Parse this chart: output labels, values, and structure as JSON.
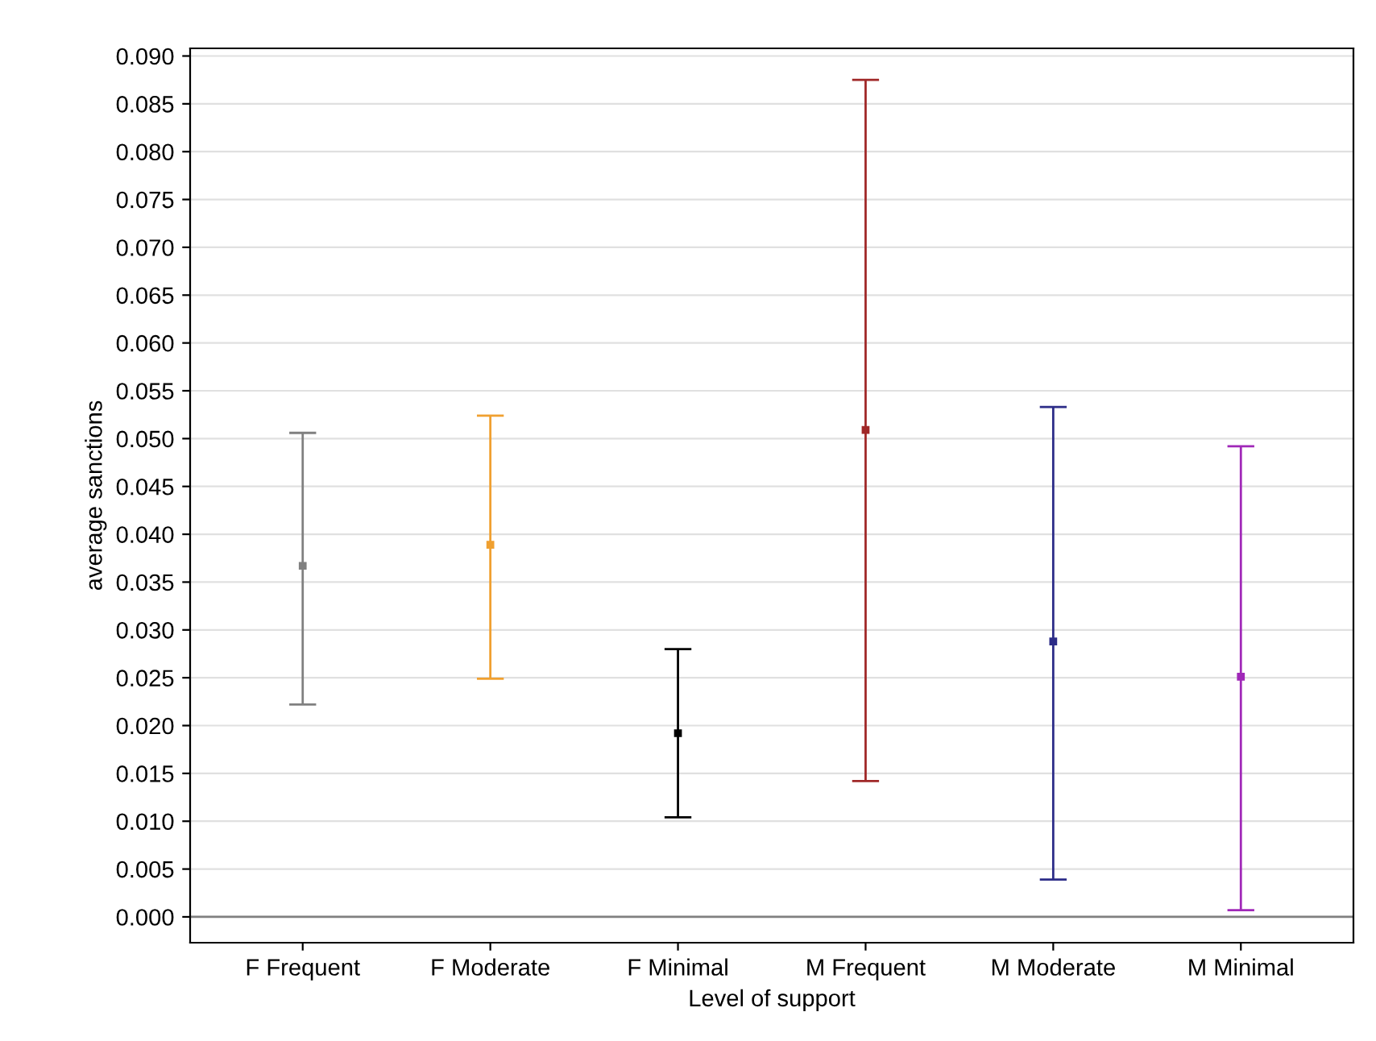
{
  "chart_data": {
    "type": "scatter",
    "xlabel": "Level of support",
    "ylabel": "average sanctions",
    "categories": [
      "F Frequent",
      "F Moderate",
      "F Minimal",
      "M Frequent",
      "M Moderate",
      "M Minimal"
    ],
    "values": [
      0.0367,
      0.0389,
      0.0192,
      0.0509,
      0.0288,
      0.0251
    ],
    "errors": [
      [
        0.0222,
        0.0506
      ],
      [
        0.0249,
        0.0524
      ],
      [
        0.0104,
        0.028
      ],
      [
        0.0142,
        0.0875
      ],
      [
        0.0039,
        0.0533
      ],
      [
        0.0007,
        0.0492
      ]
    ],
    "colors": [
      "#808080",
      "#f0a030",
      "#000000",
      "#a02828",
      "#2c2c88",
      "#a028b8"
    ],
    "marker": "square",
    "grid": "y",
    "ylim": [
      -0.0027,
      0.0908
    ],
    "yticks": [
      {
        "value": 0,
        "label": "0.000"
      },
      {
        "value": 0.005,
        "label": "0.005"
      },
      {
        "value": 0.01,
        "label": "0.010"
      },
      {
        "value": 0.015,
        "label": "0.015"
      },
      {
        "value": 0.02,
        "label": "0.020"
      },
      {
        "value": 0.025,
        "label": "0.025"
      },
      {
        "value": 0.03,
        "label": "0.030"
      },
      {
        "value": 0.035,
        "label": "0.035"
      },
      {
        "value": 0.04,
        "label": "0.040"
      },
      {
        "value": 0.045,
        "label": "0.045"
      },
      {
        "value": 0.05,
        "label": "0.050"
      },
      {
        "value": 0.055,
        "label": "0.055"
      },
      {
        "value": 0.06,
        "label": "0.060"
      },
      {
        "value": 0.065,
        "label": "0.065"
      },
      {
        "value": 0.07,
        "label": "0.070"
      },
      {
        "value": 0.075,
        "label": "0.075"
      },
      {
        "value": 0.08,
        "label": "0.080"
      },
      {
        "value": 0.085,
        "label": "0.085"
      },
      {
        "value": 0.09,
        "label": "0.090"
      }
    ],
    "ref_lines": [
      {
        "axis": "y",
        "value": 0,
        "color": "#808080"
      }
    ]
  }
}
